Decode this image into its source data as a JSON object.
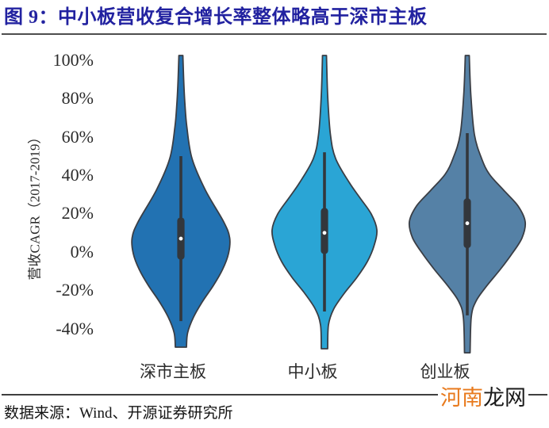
{
  "figure": {
    "title": "图 9：中小板营收复合增长率整体略高于深市主板",
    "source": "数据来源：Wind、开源证券研究所",
    "watermark": {
      "orange": "河南",
      "black": "龙网"
    }
  },
  "colors": {
    "title": "#2222a0",
    "watermark_orange": "#e87a1d",
    "watermark_black": "#1a1a1a",
    "violin_outline": "#3a3e45",
    "violin_inner": "#33373c",
    "median_dot": "#ffffff",
    "axis_text": "#2b2b2b"
  },
  "chart_data": {
    "type": "violin",
    "title": "中小板营收复合增长率整体略高于深市主板",
    "ylabel": "营收CAGR（2017-2019）",
    "y_unit": "%",
    "ylim": [
      -50,
      103
    ],
    "grid": false,
    "legend": "none",
    "y_tick_labels": [
      "100%",
      "80%",
      "60%",
      "40%",
      "20%",
      "0%",
      "-20%",
      "-40%"
    ],
    "y_tick_values": [
      100,
      80,
      60,
      40,
      20,
      0,
      -20,
      -40
    ],
    "categories": [
      "深市主板",
      "中小板",
      "创业板"
    ],
    "violins": [
      {
        "key": "shenzhen-main-board",
        "label": "深市主板",
        "color": "#2272b2",
        "median_pct": 7,
        "q1_pct": -4,
        "q3_pct": 18,
        "whisker_low_pct": -36,
        "whisker_high_pct": 50,
        "range_pct": [
          -50,
          103
        ],
        "density_profile": [
          [
            102.5,
            2.5
          ],
          [
            90,
            3.5
          ],
          [
            77.7,
            5
          ],
          [
            65.3,
            7.5
          ],
          [
            48.8,
            14
          ],
          [
            32.2,
            31
          ],
          [
            15.7,
            54
          ],
          [
            7.4,
            61.5
          ],
          [
            -0.8,
            60
          ],
          [
            -9.1,
            52.5
          ],
          [
            -17.4,
            41
          ],
          [
            -25.6,
            27.5
          ],
          [
            -33.9,
            16
          ],
          [
            -42.1,
            8.5
          ],
          [
            -49.6,
            7
          ]
        ]
      },
      {
        "key": "sme-board",
        "label": "中小板",
        "color": "#2aa5d5",
        "median_pct": 10,
        "q1_pct": -1,
        "q3_pct": 23,
        "whisker_low_pct": -31,
        "whisker_high_pct": 52,
        "range_pct": [
          -50,
          103
        ],
        "density_profile": [
          [
            102.5,
            2.5
          ],
          [
            81.8,
            4
          ],
          [
            61.2,
            7.5
          ],
          [
            48.8,
            14
          ],
          [
            36.4,
            31
          ],
          [
            28.1,
            45
          ],
          [
            19.8,
            59
          ],
          [
            11.6,
            66
          ],
          [
            3.3,
            62.5
          ],
          [
            -5,
            54
          ],
          [
            -13.2,
            41
          ],
          [
            -21.5,
            25
          ],
          [
            -29.8,
            11.5
          ],
          [
            -38,
            5
          ],
          [
            -50.4,
            4
          ]
        ]
      },
      {
        "key": "chinext-board",
        "label": "创业板",
        "color": "#5581a6",
        "median_pct": 15,
        "q1_pct": 2,
        "q3_pct": 28,
        "whisker_low_pct": -33,
        "whisker_high_pct": 62,
        "range_pct": [
          -52,
          103
        ],
        "density_profile": [
          [
            102.5,
            2.5
          ],
          [
            81.8,
            4.5
          ],
          [
            61.2,
            9
          ],
          [
            48.8,
            18
          ],
          [
            40.5,
            28
          ],
          [
            32.2,
            46
          ],
          [
            24,
            64
          ],
          [
            15.7,
            73
          ],
          [
            7.4,
            69
          ],
          [
            -0.8,
            56.5
          ],
          [
            -9.1,
            41.5
          ],
          [
            -17.4,
            25
          ],
          [
            -25.6,
            11
          ],
          [
            -33.9,
            5
          ],
          [
            -52.5,
            3.5
          ]
        ]
      }
    ]
  }
}
